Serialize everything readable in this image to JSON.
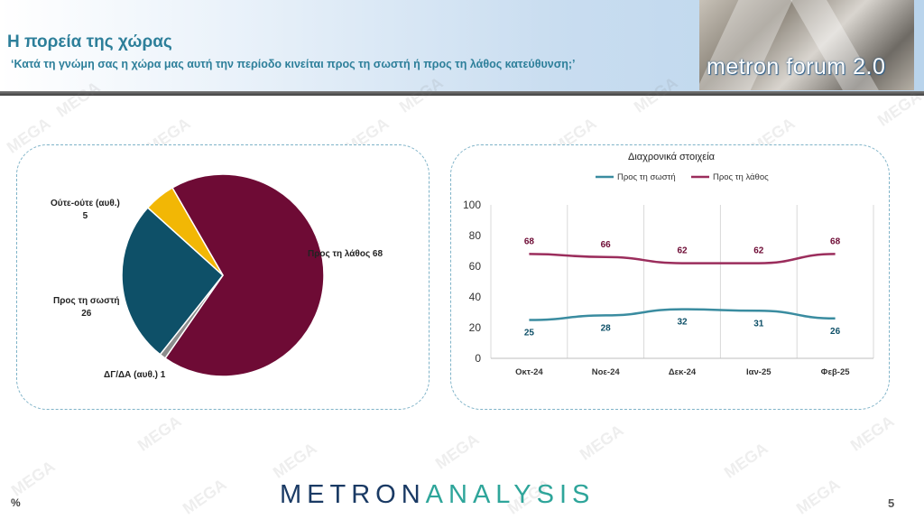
{
  "header": {
    "title": "Η πορεία της χώρας",
    "subtitle": "‘Κατά τη γνώμη σας η χώρα μας αυτή την περίοδο κινείται προς τη σωστή ή προς τη λάθος κατεύθυνση;’",
    "forum_label": "metron forum 2.0"
  },
  "watermark_text": "MEGA",
  "footer": {
    "brand_part1": "METRON",
    "brand_part2": "ANALYSIS",
    "page_number": "5",
    "unit_mark": "%"
  },
  "colors": {
    "wrong": "#6e0b35",
    "right": "#0e5068",
    "neither": "#f2b705",
    "dk": "#8c8c8c",
    "line_wrong": "#9b2d5c",
    "line_right": "#3a8ca0"
  },
  "chart_data": [
    {
      "type": "pie",
      "slices": [
        {
          "label": "Προς τη λάθος",
          "value": 68,
          "display": "Προς τη λάθος 68",
          "color": "#6e0b35"
        },
        {
          "label": "ΔΓ/ΔΑ (αυθ.)",
          "value": 1,
          "display": "ΔΓ/ΔΑ (αυθ.) 1",
          "color": "#8c8c8c"
        },
        {
          "label": "Προς τη σωστή",
          "value": 26,
          "display_line1": "Προς τη σωστή",
          "display_line2": "26",
          "color": "#0e5068"
        },
        {
          "label": "Ούτε-ούτε (αυθ.)",
          "value": 5,
          "display_line1": "Ούτε-ούτε (αυθ.)",
          "display_line2": "5",
          "color": "#f2b705"
        }
      ]
    },
    {
      "type": "line",
      "title": "Διαχρονικά στοιχεία",
      "categories": [
        "Οκτ-24",
        "Νοε-24",
        "Δεκ-24",
        "Ιαν-25",
        "Φεβ-25"
      ],
      "series": [
        {
          "name": "Προς τη σωστή",
          "values": [
            25,
            28,
            32,
            31,
            26
          ],
          "color": "#3a8ca0",
          "label_color": "#0e5068"
        },
        {
          "name": "Προς τη λάθος",
          "values": [
            68,
            66,
            62,
            62,
            68
          ],
          "color": "#9b2d5c",
          "label_color": "#6e0b35"
        }
      ],
      "ylim": [
        0,
        100
      ],
      "yticks": [
        0,
        20,
        40,
        60,
        80,
        100
      ],
      "grid": "vertical",
      "legend": "top"
    }
  ]
}
